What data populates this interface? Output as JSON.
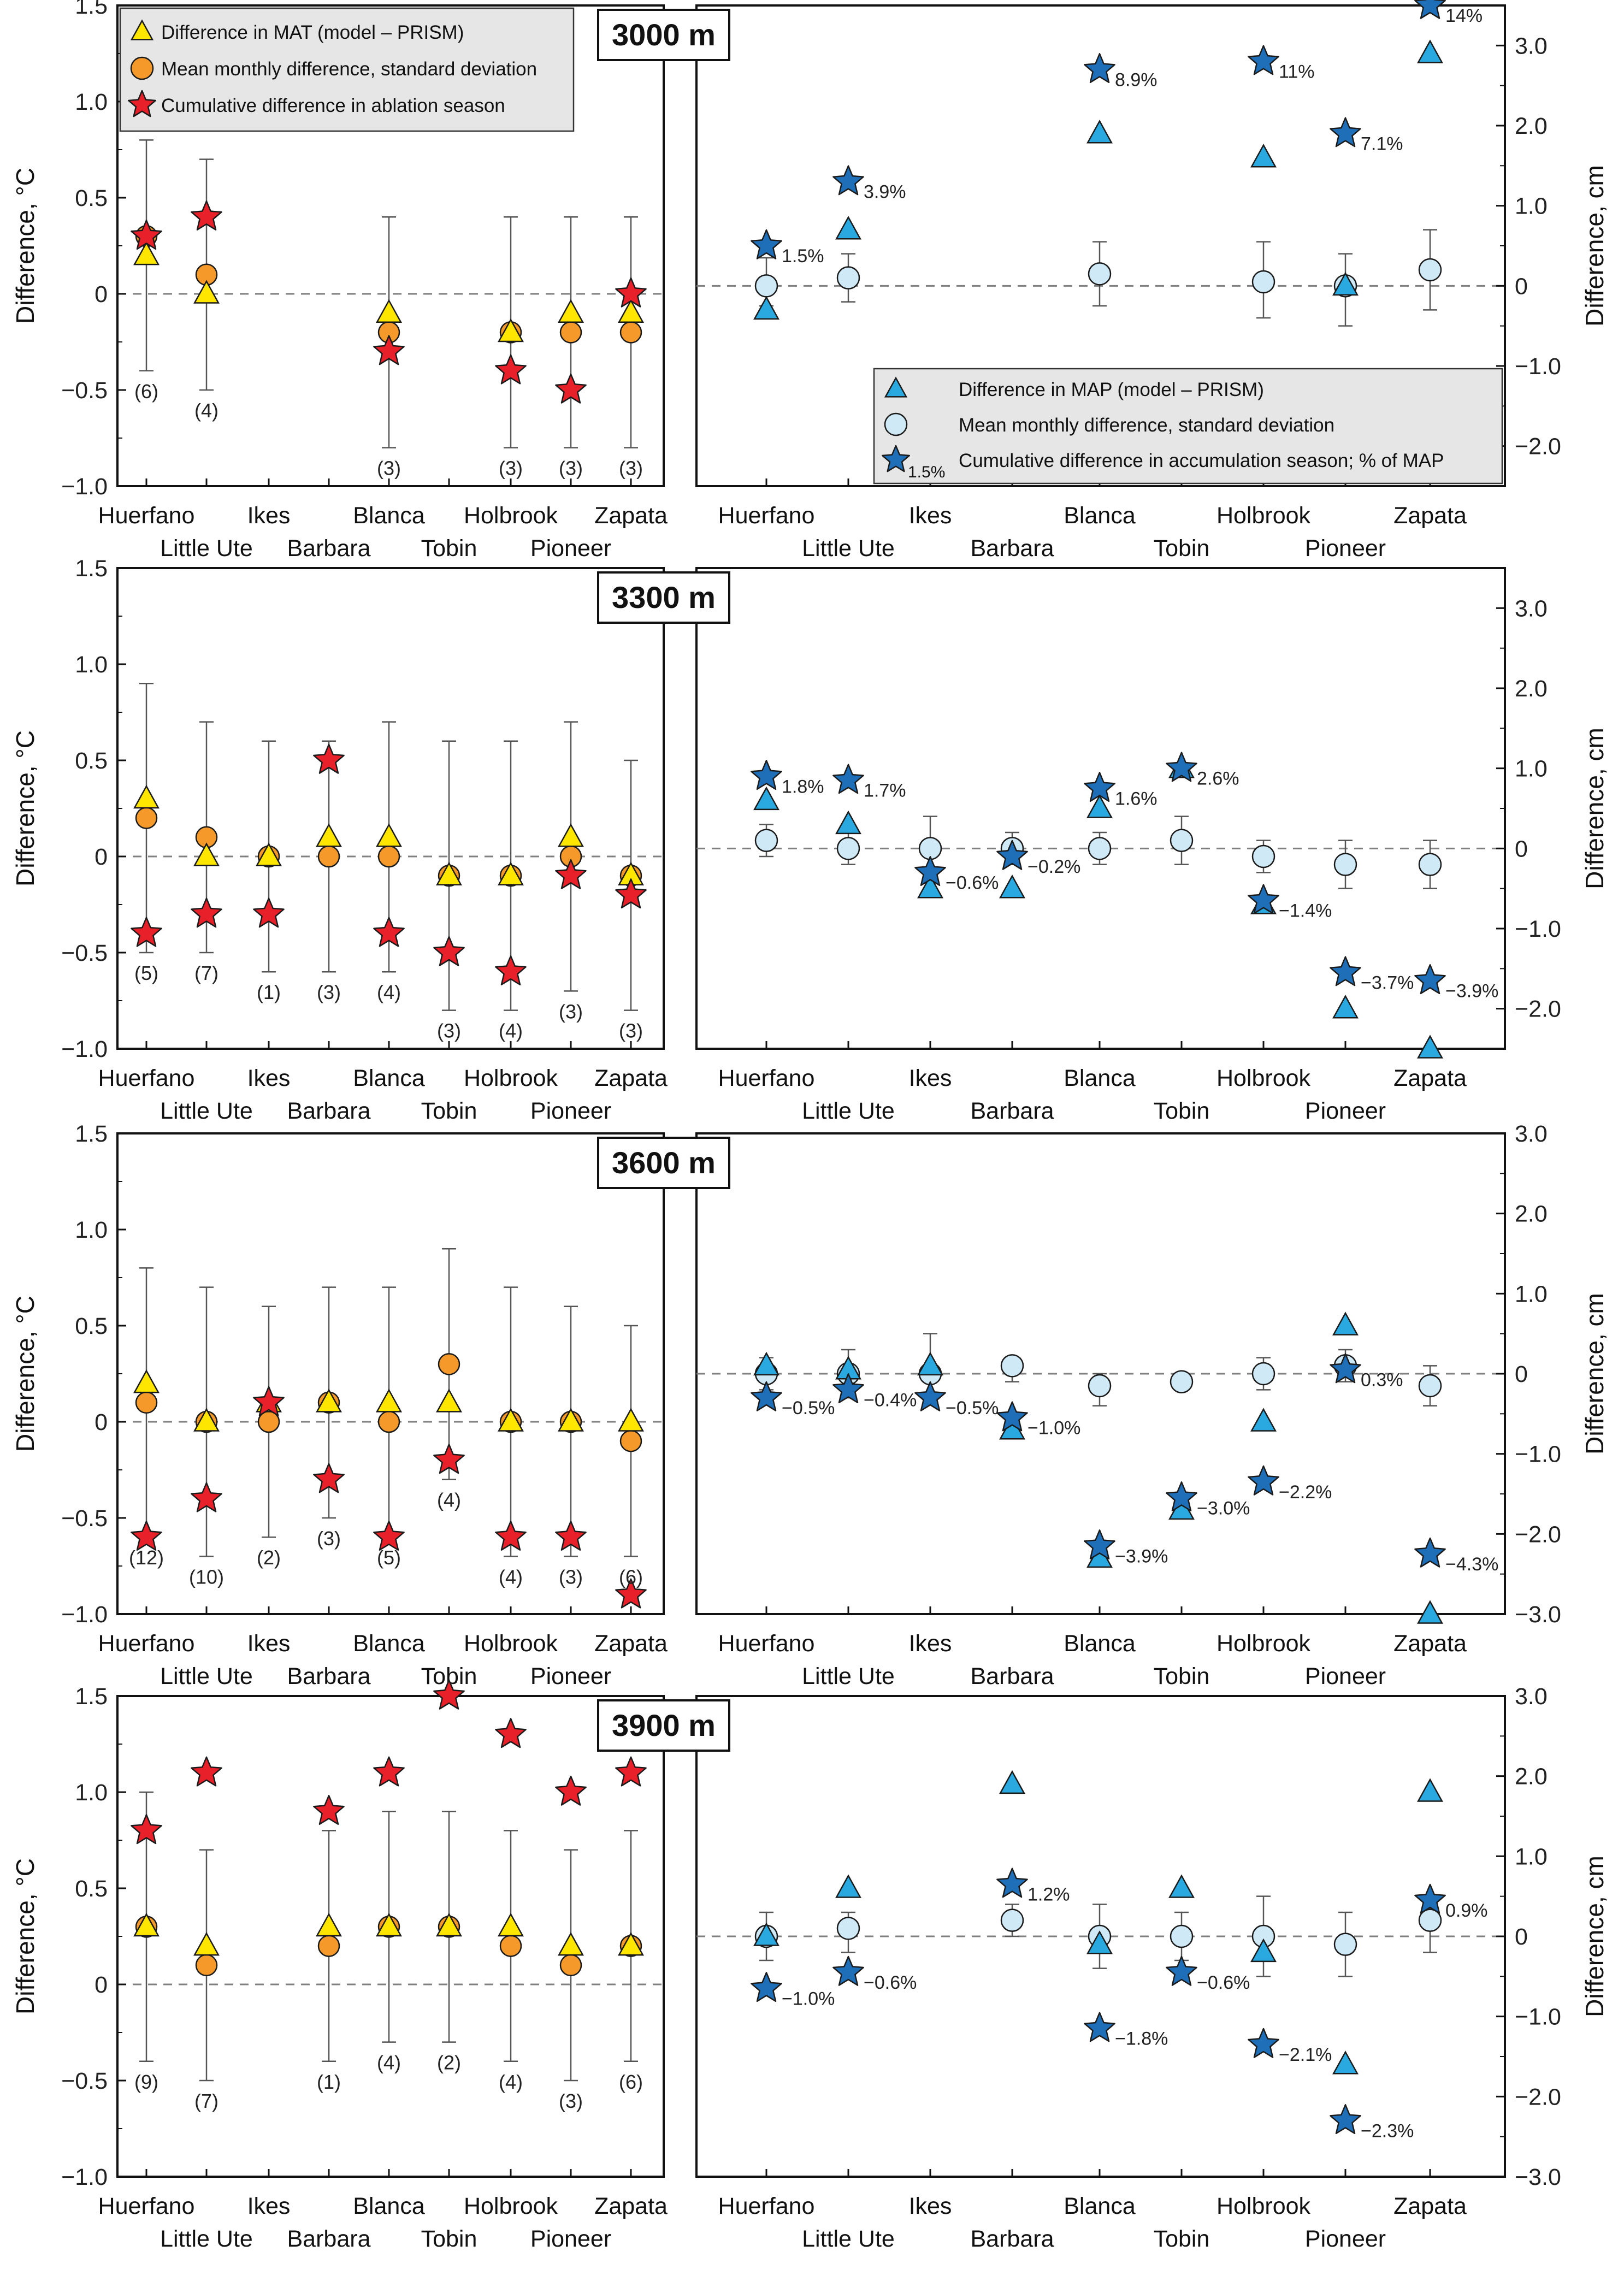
{
  "figure": {
    "left_ylabel": "Difference, °C",
    "right_ylabel": "Difference, cm",
    "colors": {
      "mat_triangle": "#ffe600",
      "mat_circle": "#f59a2a",
      "mat_star": "#e8202a",
      "map_triangle": "#2aa9e0",
      "map_circle": "#cfe9f7",
      "map_star": "#1f6fb8",
      "legend_bg": "#e6e6e6",
      "zero_line": "#808080"
    },
    "legend_left": [
      {
        "symbol": "triangle",
        "label": "Difference in MAT (model – PRISM)"
      },
      {
        "symbol": "circle",
        "label": "Mean monthly difference, standard deviation"
      },
      {
        "symbol": "star",
        "label": "Cumulative difference in ablation season"
      }
    ],
    "legend_right": [
      {
        "symbol": "triangle",
        "label": "Difference in MAP (model – PRISM)"
      },
      {
        "symbol": "circle",
        "label": "Mean monthly difference, standard deviation"
      },
      {
        "symbol": "star",
        "label": "Cumulative difference in accumulation season; % of MAP",
        "star_label": "1.5%"
      }
    ]
  },
  "chart_data": [
    {
      "type": "scatter",
      "title": "3000 m",
      "categories": [
        "Huerfano",
        "Little Ute",
        "Ikes",
        "Barbara",
        "Blanca",
        "Tobin",
        "Holbrook",
        "Pioneer",
        "Zapata"
      ],
      "temperature": {
        "ylabel": "Difference, °C",
        "ylim": [
          -1.0,
          1.5
        ],
        "yticks": [
          "1.5",
          "1.0",
          "0.5",
          "0",
          "-0.5",
          "-1.0"
        ],
        "mat_triangle": [
          0.2,
          0.0,
          null,
          null,
          -0.1,
          null,
          -0.2,
          -0.1,
          -0.1
        ],
        "mean_monthly": [
          0.3,
          0.1,
          null,
          null,
          -0.2,
          null,
          -0.2,
          -0.2,
          -0.2
        ],
        "std_low": [
          -0.4,
          -0.5,
          null,
          null,
          -0.8,
          null,
          -0.8,
          -0.8,
          -0.8
        ],
        "std_high": [
          0.8,
          0.7,
          null,
          null,
          0.4,
          null,
          0.4,
          0.4,
          0.4
        ],
        "cumulative_ablation": [
          0.3,
          0.4,
          null,
          null,
          -0.3,
          null,
          -0.4,
          -0.5,
          0.0
        ],
        "counts": [
          "(6)",
          "(4)",
          null,
          null,
          "(3)",
          null,
          "(3)",
          "(3)",
          "(3)"
        ]
      },
      "precipitation": {
        "ylabel": "Difference, cm",
        "ylim": [
          -2.5,
          3.5
        ],
        "yticks": [
          "3.0",
          "2.0",
          "1.0",
          "0",
          "-1.0",
          "-2.0"
        ],
        "map_triangle": [
          -0.3,
          0.7,
          null,
          null,
          1.9,
          null,
          1.6,
          0.0,
          2.9
        ],
        "mean_monthly": [
          0.0,
          0.1,
          null,
          null,
          0.15,
          null,
          0.05,
          0.0,
          0.2
        ],
        "std_low": [
          -0.25,
          -0.2,
          null,
          null,
          -0.25,
          null,
          -0.4,
          -0.5,
          -0.3
        ],
        "std_high": [
          0.35,
          0.4,
          null,
          null,
          0.55,
          null,
          0.55,
          0.4,
          0.7
        ],
        "cumulative_accumulation": [
          0.5,
          1.3,
          null,
          null,
          2.7,
          null,
          2.8,
          1.9,
          3.5
        ],
        "percent_labels": [
          "1.5%",
          "3.9%",
          null,
          null,
          "8.9%",
          null,
          "11%",
          "7.1%",
          "14%"
        ]
      }
    },
    {
      "type": "scatter",
      "title": "3300 m",
      "categories": [
        "Huerfano",
        "Little Ute",
        "Ikes",
        "Barbara",
        "Blanca",
        "Tobin",
        "Holbrook",
        "Pioneer",
        "Zapata"
      ],
      "temperature": {
        "ylabel": "Difference, °C",
        "ylim": [
          -1.0,
          1.5
        ],
        "yticks": [
          "1.5",
          "1.0",
          "0.5",
          "0",
          "-0.5",
          "-1.0"
        ],
        "mat_triangle": [
          0.3,
          0.0,
          0.0,
          0.1,
          0.1,
          -0.1,
          -0.1,
          0.1,
          -0.1
        ],
        "mean_monthly": [
          0.2,
          0.1,
          0.0,
          0.0,
          0.0,
          -0.1,
          -0.1,
          0.0,
          -0.1
        ],
        "std_low": [
          -0.5,
          -0.5,
          -0.6,
          -0.6,
          -0.6,
          -0.8,
          -0.8,
          -0.7,
          -0.8
        ],
        "std_high": [
          0.9,
          0.7,
          0.6,
          0.6,
          0.7,
          0.6,
          0.6,
          0.7,
          0.5
        ],
        "cumulative_ablation": [
          -0.4,
          -0.3,
          -0.3,
          0.5,
          -0.4,
          -0.5,
          -0.6,
          -0.1,
          -0.2
        ],
        "counts": [
          "(5)",
          "(7)",
          "(1)",
          "(3)",
          "(4)",
          "(3)",
          "(4)",
          "(3)",
          "(3)"
        ]
      },
      "precipitation": {
        "ylabel": "Difference, cm",
        "ylim": [
          -2.5,
          3.5
        ],
        "yticks": [
          "3.0",
          "2.0",
          "1.0",
          "0",
          "-1.0",
          "-2.0"
        ],
        "map_triangle": [
          0.6,
          0.3,
          -0.5,
          -0.5,
          0.5,
          1.0,
          -0.7,
          -2.0,
          -2.5
        ],
        "mean_monthly": [
          0.1,
          0.0,
          0.0,
          0.0,
          0.0,
          0.1,
          -0.1,
          -0.2,
          -0.2
        ],
        "std_low": [
          -0.1,
          -0.2,
          -0.3,
          -0.2,
          -0.2,
          -0.2,
          -0.3,
          -0.5,
          -0.5
        ],
        "std_high": [
          0.3,
          0.2,
          0.4,
          0.2,
          0.2,
          0.4,
          0.1,
          0.1,
          0.1
        ],
        "cumulative_accumulation": [
          0.9,
          0.85,
          -0.3,
          -0.1,
          0.75,
          1.0,
          -0.65,
          -1.55,
          -1.65
        ],
        "percent_labels": [
          "1.8%",
          "1.7%",
          "-0.6%",
          "-0.2%",
          "1.6%",
          "2.6%",
          "-1.4%",
          "-3.7%",
          "-3.9%"
        ]
      }
    },
    {
      "type": "scatter",
      "title": "3600 m",
      "categories": [
        "Huerfano",
        "Little Ute",
        "Ikes",
        "Barbara",
        "Blanca",
        "Tobin",
        "Holbrook",
        "Pioneer",
        "Zapata"
      ],
      "temperature": {
        "ylabel": "Difference, °C",
        "ylim": [
          -1.0,
          1.5
        ],
        "yticks": [
          "1.5",
          "1.0",
          "0.5",
          "0",
          "-0.5",
          "-1.0"
        ],
        "mat_triangle": [
          0.2,
          0.0,
          0.1,
          0.1,
          0.1,
          0.1,
          0.0,
          0.0,
          0.0
        ],
        "mean_monthly": [
          0.1,
          0.0,
          0.0,
          0.1,
          0.0,
          0.3,
          0.0,
          0.0,
          -0.1
        ],
        "std_low": [
          -0.6,
          -0.7,
          -0.6,
          -0.5,
          -0.6,
          -0.3,
          -0.7,
          -0.7,
          -0.7
        ],
        "std_high": [
          0.8,
          0.7,
          0.6,
          0.7,
          0.7,
          0.9,
          0.7,
          0.6,
          0.5
        ],
        "cumulative_ablation": [
          -0.6,
          -0.4,
          0.1,
          -0.3,
          -0.6,
          -0.2,
          -0.6,
          -0.6,
          -0.9
        ],
        "counts": [
          "(12)",
          "(10)",
          "(2)",
          "(3)",
          "(5)",
          "(4)",
          "(4)",
          "(3)",
          "(6)"
        ]
      },
      "precipitation": {
        "ylabel": "Difference, cm",
        "ylim": [
          -3.0,
          3.0
        ],
        "yticks": [
          "3.0",
          "2.0",
          "1.0",
          "0",
          "-1.0",
          "-2.0",
          "-3.0"
        ],
        "map_triangle": [
          0.1,
          0.05,
          0.1,
          -0.7,
          -2.3,
          -1.7,
          -0.6,
          0.6,
          -3.0
        ],
        "mean_monthly": [
          0.0,
          0.0,
          0.0,
          0.1,
          -0.15,
          -0.1,
          0.0,
          0.1,
          -0.15
        ],
        "std_low": [
          -0.2,
          -0.3,
          -0.3,
          -0.1,
          -0.4,
          -0.2,
          -0.2,
          -0.1,
          -0.4
        ],
        "std_high": [
          0.2,
          0.3,
          0.5,
          0.2,
          0.0,
          0.0,
          0.2,
          0.3,
          0.1
        ],
        "cumulative_accumulation": [
          -0.3,
          -0.2,
          -0.3,
          -0.55,
          -2.15,
          -1.55,
          -1.35,
          0.05,
          -2.25
        ],
        "percent_labels": [
          "-0.5%",
          "-0.4%",
          "-0.5%",
          "-1.0%",
          "-3.9%",
          "-3.0%",
          "-2.2%",
          "0.3%",
          "-4.3%"
        ]
      }
    },
    {
      "type": "scatter",
      "title": "3900 m",
      "categories": [
        "Huerfano",
        "Little Ute",
        "Ikes",
        "Barbara",
        "Blanca",
        "Tobin",
        "Holbrook",
        "Pioneer",
        "Zapata"
      ],
      "temperature": {
        "ylabel": "Difference, °C",
        "ylim": [
          -1.0,
          1.5
        ],
        "yticks": [
          "1.5",
          "1.0",
          "0.5",
          "0",
          "-0.5",
          "-1.0"
        ],
        "mat_triangle": [
          0.3,
          0.2,
          null,
          0.3,
          0.3,
          0.3,
          0.3,
          0.2,
          0.2
        ],
        "mean_monthly": [
          0.3,
          0.1,
          null,
          0.2,
          0.3,
          0.3,
          0.2,
          0.1,
          0.2
        ],
        "std_low": [
          -0.4,
          -0.5,
          null,
          -0.4,
          -0.3,
          -0.3,
          -0.4,
          -0.5,
          -0.4
        ],
        "std_high": [
          1.0,
          0.7,
          null,
          0.8,
          0.9,
          0.9,
          0.8,
          0.7,
          0.8
        ],
        "cumulative_ablation": [
          0.8,
          1.1,
          null,
          0.9,
          1.1,
          1.5,
          1.3,
          1.0,
          1.1
        ],
        "counts": [
          "(9)",
          "(7)",
          null,
          "(1)",
          "(4)",
          "(2)",
          "(4)",
          "(3)",
          "(6)"
        ]
      },
      "precipitation": {
        "ylabel": "Difference, cm",
        "ylim": [
          -3.0,
          3.0
        ],
        "yticks": [
          "3.0",
          "2.0",
          "1.0",
          "0",
          "-1.0",
          "-2.0",
          "-3.0"
        ],
        "map_triangle": [
          0.0,
          0.6,
          null,
          1.9,
          -0.1,
          0.6,
          -0.2,
          -1.6,
          1.8
        ],
        "mean_monthly": [
          0.0,
          0.1,
          null,
          0.2,
          0.0,
          0.0,
          0.0,
          -0.1,
          0.2
        ],
        "std_low": [
          -0.3,
          -0.2,
          null,
          0.0,
          -0.4,
          -0.3,
          -0.5,
          -0.5,
          -0.2
        ],
        "std_high": [
          0.3,
          0.3,
          null,
          0.4,
          0.4,
          0.3,
          0.5,
          0.3,
          0.5
        ],
        "cumulative_accumulation": [
          -0.65,
          -0.45,
          null,
          0.65,
          -1.15,
          -0.45,
          -1.35,
          -2.3,
          0.45
        ],
        "percent_labels": [
          "-1.0%",
          "-0.6%",
          null,
          "1.2%",
          "-1.8%",
          "-0.6%",
          "-2.1%",
          "-2.3%",
          "0.9%"
        ]
      }
    }
  ]
}
